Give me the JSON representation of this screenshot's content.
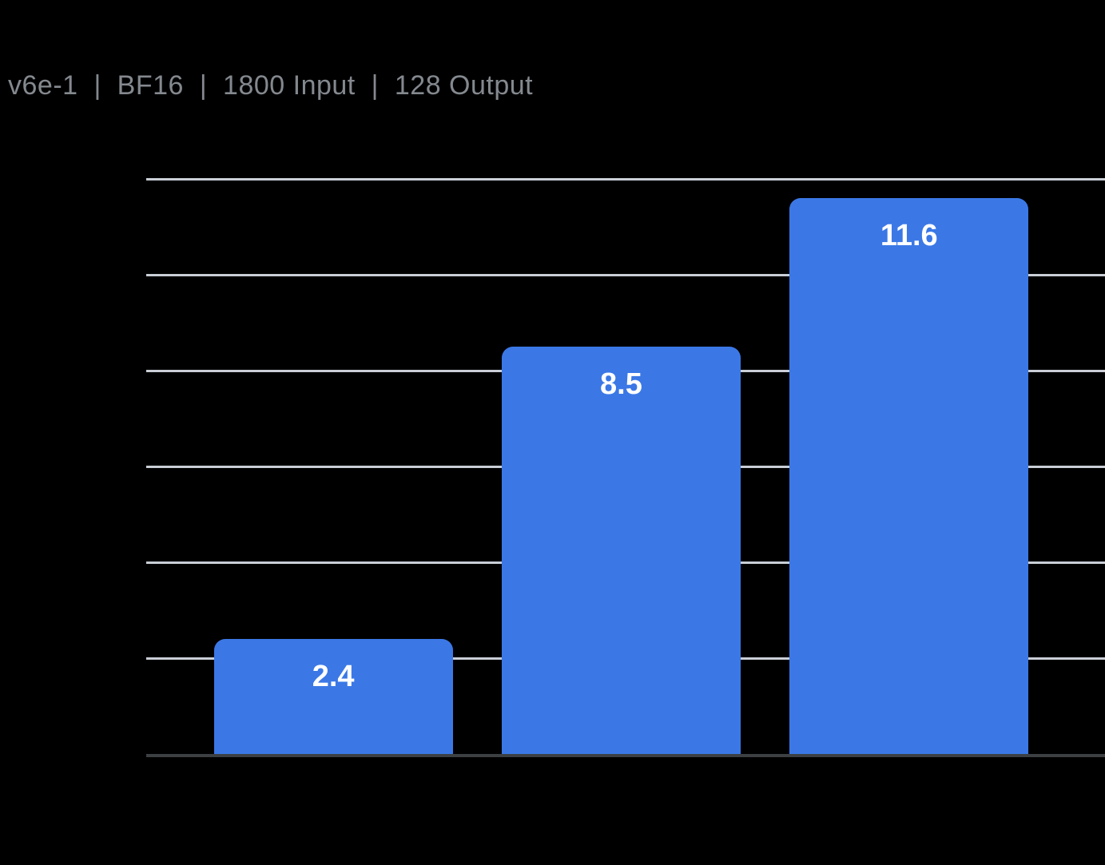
{
  "title": {
    "text": "v6e-1  |  BF16  |  1800 Input  |  128 Output"
  },
  "chart_data": {
    "type": "bar",
    "title": "v6e-1 | BF16 | 1800 Input | 128 Output",
    "categories": [
      "",
      "",
      ""
    ],
    "values": [
      2.4,
      8.5,
      11.6
    ],
    "data_labels": [
      "2.4",
      "8.5",
      "11.6"
    ],
    "xlabel": "",
    "ylabel": "",
    "ylim": [
      0,
      12
    ],
    "gridline_step": 2,
    "grid": true,
    "legend": false,
    "y_tick_labels_visible": false,
    "x_tick_labels_visible": false,
    "data_label_position": "inside-top",
    "colors": {
      "bar": "#3B78E6",
      "data_label": "#FFFFFF",
      "gridline": "#C9CED6",
      "axis_line": "#3C4043",
      "title": "#84898F",
      "background": "#000000"
    }
  }
}
